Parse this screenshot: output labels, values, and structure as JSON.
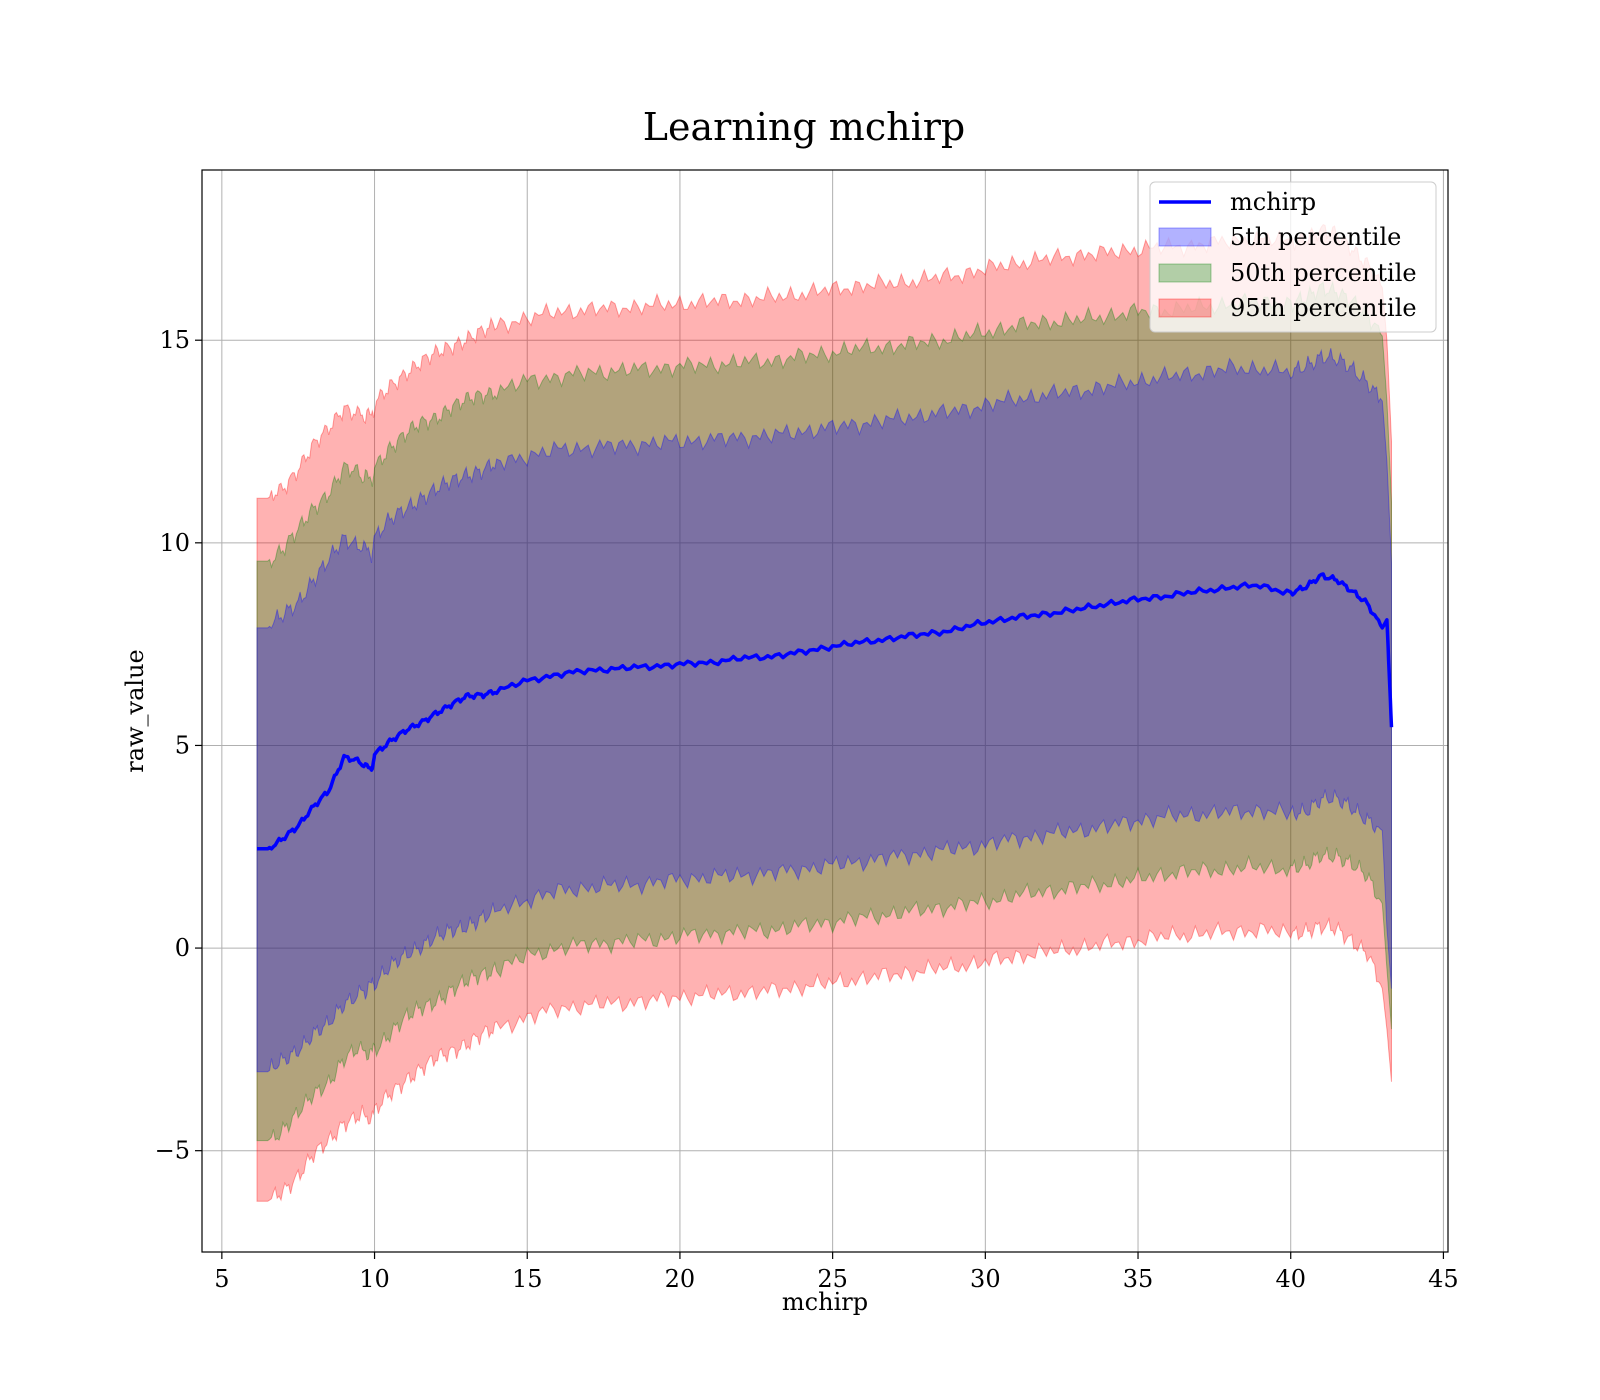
{
  "chart_data": {
    "type": "area",
    "title": "Learning mchirp",
    "xlabel": "mchirp",
    "ylabel": "raw_value",
    "xlim": [
      4.35,
      45.15
    ],
    "ylim": [
      -7.5,
      19.2
    ],
    "xticks": [
      5,
      10,
      15,
      20,
      25,
      30,
      35,
      40,
      45
    ],
    "yticks": [
      -5,
      0,
      5,
      10,
      15
    ],
    "ytick_labels": [
      "−5",
      "0",
      "5",
      "10",
      "15"
    ],
    "grid": true,
    "legend_position": "top-right",
    "legend": [
      "mchirp",
      "5th percentile",
      "50th percentile",
      "95th percentile"
    ],
    "colors": {
      "line": "#0000ff",
      "p5": "#0000ff",
      "p50": "#008000",
      "p95": "#ff0000",
      "grid": "#b0b0b0",
      "axes": "#000000"
    },
    "x": [
      6.15,
      6.5,
      7.0,
      7.5,
      8.0,
      8.5,
      9.0,
      9.5,
      9.9,
      10.0,
      10.5,
      11.0,
      11.5,
      12.0,
      12.5,
      13.0,
      13.5,
      14.0,
      15.0,
      16.0,
      17.0,
      18.0,
      19.0,
      20.0,
      21.0,
      22.0,
      23.0,
      24.0,
      25.0,
      26.0,
      27.0,
      28.0,
      29.0,
      30.0,
      31.0,
      32.0,
      33.0,
      34.0,
      35.0,
      36.0,
      37.0,
      38.0,
      39.0,
      40.0,
      40.5,
      41.0,
      41.5,
      42.0,
      42.5,
      43.0,
      43.15,
      43.3
    ],
    "series": [
      {
        "name": "mchirp",
        "kind": "line",
        "values": [
          2.45,
          2.45,
          2.7,
          3.0,
          3.5,
          3.9,
          4.7,
          4.6,
          4.4,
          4.8,
          5.1,
          5.35,
          5.55,
          5.8,
          6.0,
          6.2,
          6.25,
          6.35,
          6.6,
          6.75,
          6.85,
          6.9,
          6.95,
          7.0,
          7.05,
          7.15,
          7.2,
          7.3,
          7.45,
          7.55,
          7.65,
          7.75,
          7.85,
          8.05,
          8.15,
          8.25,
          8.35,
          8.5,
          8.6,
          8.7,
          8.8,
          8.9,
          8.95,
          8.75,
          8.9,
          9.2,
          9.1,
          8.8,
          8.5,
          7.9,
          8.1,
          5.45
        ]
      },
      {
        "name": "5th percentile",
        "kind": "band",
        "lower": [
          -3.05,
          -3.05,
          -2.8,
          -2.5,
          -2.1,
          -1.9,
          -1.4,
          -1.1,
          -0.95,
          -0.9,
          -0.5,
          -0.15,
          0.05,
          0.25,
          0.4,
          0.55,
          0.75,
          0.9,
          1.2,
          1.4,
          1.5,
          1.55,
          1.6,
          1.7,
          1.75,
          1.8,
          1.85,
          1.95,
          2.05,
          2.15,
          2.25,
          2.35,
          2.45,
          2.55,
          2.7,
          2.8,
          2.9,
          3.0,
          3.15,
          3.25,
          3.3,
          3.35,
          3.4,
          3.3,
          3.4,
          3.7,
          3.65,
          3.45,
          3.2,
          2.9,
          0.5,
          -1.0
        ],
        "upper": [
          7.9,
          7.9,
          8.2,
          8.55,
          9.1,
          9.55,
          10.1,
          9.95,
          9.75,
          10.1,
          10.55,
          10.85,
          11.1,
          11.3,
          11.5,
          11.7,
          11.8,
          11.95,
          12.15,
          12.3,
          12.35,
          12.4,
          12.45,
          12.5,
          12.55,
          12.6,
          12.65,
          12.75,
          12.85,
          12.95,
          13.05,
          13.15,
          13.25,
          13.4,
          13.55,
          13.65,
          13.75,
          13.85,
          14.0,
          14.1,
          14.2,
          14.3,
          14.3,
          14.2,
          14.4,
          14.6,
          14.5,
          14.3,
          14.0,
          13.5,
          12.0,
          9.5
        ]
      },
      {
        "name": "50th percentile",
        "kind": "band",
        "lower": [
          -4.75,
          -4.75,
          -4.5,
          -4.1,
          -3.6,
          -3.3,
          -2.75,
          -2.5,
          -2.6,
          -2.5,
          -2.1,
          -1.75,
          -1.5,
          -1.3,
          -1.05,
          -0.85,
          -0.65,
          -0.5,
          -0.2,
          0.0,
          0.1,
          0.15,
          0.2,
          0.3,
          0.35,
          0.4,
          0.45,
          0.55,
          0.65,
          0.75,
          0.85,
          0.95,
          1.05,
          1.15,
          1.3,
          1.4,
          1.5,
          1.6,
          1.7,
          1.85,
          1.9,
          1.95,
          2.0,
          1.95,
          2.0,
          2.3,
          2.3,
          2.05,
          1.75,
          1.1,
          -0.5,
          -2.0
        ],
        "upper": [
          9.55,
          9.55,
          9.85,
          10.3,
          10.85,
          11.25,
          11.85,
          11.7,
          11.55,
          11.9,
          12.35,
          12.65,
          12.95,
          13.1,
          13.35,
          13.5,
          13.65,
          13.75,
          14.0,
          14.1,
          14.2,
          14.25,
          14.3,
          14.35,
          14.4,
          14.45,
          14.5,
          14.6,
          14.7,
          14.8,
          14.85,
          14.95,
          15.05,
          15.2,
          15.35,
          15.45,
          15.5,
          15.6,
          15.7,
          15.75,
          15.8,
          15.9,
          15.95,
          15.9,
          16.0,
          16.3,
          16.25,
          15.95,
          15.6,
          15.1,
          13.5,
          11.0
        ]
      },
      {
        "name": "95th percentile",
        "kind": "band",
        "lower": [
          -6.25,
          -6.25,
          -6.0,
          -5.6,
          -5.1,
          -4.8,
          -4.3,
          -4.1,
          -4.2,
          -4.05,
          -3.6,
          -3.25,
          -3.0,
          -2.75,
          -2.55,
          -2.35,
          -2.15,
          -2.0,
          -1.7,
          -1.5,
          -1.4,
          -1.35,
          -1.3,
          -1.2,
          -1.15,
          -1.1,
          -1.05,
          -0.95,
          -0.85,
          -0.75,
          -0.65,
          -0.55,
          -0.45,
          -0.35,
          -0.2,
          -0.1,
          0.0,
          0.1,
          0.2,
          0.3,
          0.35,
          0.4,
          0.45,
          0.35,
          0.45,
          0.5,
          0.45,
          0.2,
          -0.1,
          -1.0,
          -2.0,
          -3.3
        ],
        "upper": [
          11.1,
          11.1,
          11.35,
          11.85,
          12.4,
          12.8,
          13.35,
          13.2,
          13.1,
          13.4,
          13.85,
          14.2,
          14.45,
          14.65,
          14.85,
          15.05,
          15.2,
          15.35,
          15.55,
          15.7,
          15.75,
          15.8,
          15.85,
          15.9,
          15.95,
          16.0,
          16.05,
          16.15,
          16.25,
          16.35,
          16.4,
          16.5,
          16.6,
          16.75,
          16.9,
          17.0,
          17.1,
          17.15,
          17.25,
          17.3,
          17.35,
          17.45,
          17.5,
          17.45,
          17.55,
          17.7,
          17.6,
          17.3,
          16.9,
          16.3,
          15.0,
          12.5
        ]
      }
    ]
  }
}
